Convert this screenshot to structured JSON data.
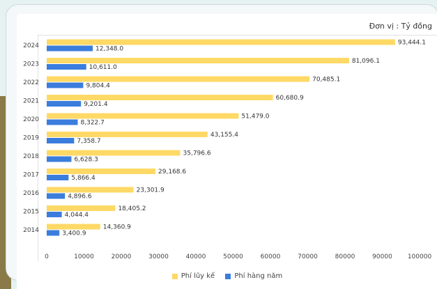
{
  "unit_label": "Đơn vị : Tỷ đồng",
  "colors": {
    "cumulative": "#ffd966",
    "annual": "#3b7ddd"
  },
  "chart_data": {
    "type": "bar",
    "orientation": "horizontal",
    "categories": [
      "2024",
      "2023",
      "2022",
      "2021",
      "2020",
      "2019",
      "2018",
      "2017",
      "2016",
      "2015",
      "2014"
    ],
    "series": [
      {
        "name": "Phí lũy kế",
        "values": [
          93444.1,
          81096.1,
          70485.1,
          60680.9,
          51479.0,
          43155.4,
          35796.6,
          29168.6,
          23301.9,
          18405.2,
          14360.9
        ],
        "labels": [
          "93,444.1",
          "81,096.1",
          "70,485.1",
          "60,680.9",
          "51,479.0",
          "43,155.4",
          "35,796.6",
          "29,168.6",
          "23,301.9",
          "18,405.2",
          "14,360.9"
        ]
      },
      {
        "name": "Phí hàng năm",
        "values": [
          12348.0,
          10611.0,
          9804.4,
          9201.4,
          8322.7,
          7358.7,
          6628.3,
          5866.4,
          4896.6,
          4044.4,
          3400.9
        ],
        "labels": [
          "12,348.0",
          "10,611.0",
          "9,804.4",
          "9,201.4",
          "8,322.7",
          "7,358.7",
          "6,628.3",
          "5,866.4",
          "4,896.6",
          "4,044.4",
          "3,400.9"
        ]
      }
    ],
    "xlim": [
      0,
      100000
    ],
    "xticks": [
      0,
      10000,
      20000,
      30000,
      40000,
      50000,
      60000,
      70000,
      80000,
      90000,
      100000
    ],
    "grid": false,
    "legend_position": "bottom"
  }
}
